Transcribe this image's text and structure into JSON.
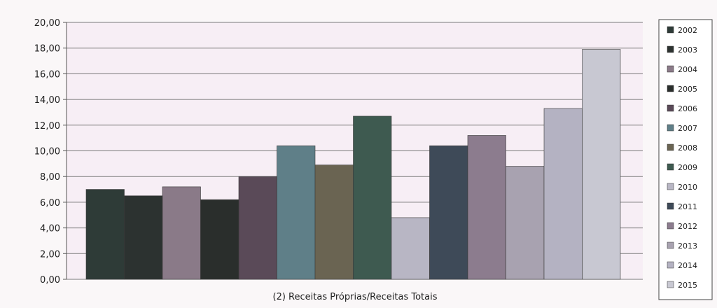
{
  "chart_data": {
    "type": "bar",
    "xlabel": "(2) Receitas Próprias/Receitas Totais",
    "ylim": [
      0,
      20
    ],
    "yticks": [
      "0,00",
      "2,00",
      "4,00",
      "6,00",
      "8,00",
      "10,00",
      "12,00",
      "14,00",
      "16,00",
      "18,00",
      "20,00"
    ],
    "grid": true,
    "legend_position": "right",
    "series": [
      {
        "name": "2002",
        "value": 7.0,
        "color": "#2e3b37"
      },
      {
        "name": "2003",
        "value": 6.5,
        "color": "#2c3230"
      },
      {
        "name": "2004",
        "value": 7.2,
        "color": "#8a7a88"
      },
      {
        "name": "2005",
        "value": 6.2,
        "color": "#2a2e2c"
      },
      {
        "name": "2006",
        "value": 8.0,
        "color": "#5a4a58"
      },
      {
        "name": "2007",
        "value": 10.4,
        "color": "#5f7f88"
      },
      {
        "name": "2008",
        "value": 8.9,
        "color": "#6a6452"
      },
      {
        "name": "2009",
        "value": 12.7,
        "color": "#3e5a50"
      },
      {
        "name": "2010",
        "value": 4.8,
        "color": "#b8b6c4"
      },
      {
        "name": "2011",
        "value": 10.4,
        "color": "#3e4a58"
      },
      {
        "name": "2012",
        "value": 11.2,
        "color": "#8c7c8e"
      },
      {
        "name": "2013",
        "value": 8.8,
        "color": "#a8a2b0"
      },
      {
        "name": "2014",
        "value": 13.3,
        "color": "#b4b2c2"
      },
      {
        "name": "2015",
        "value": 17.9,
        "color": "#c8c8d2"
      }
    ]
  }
}
